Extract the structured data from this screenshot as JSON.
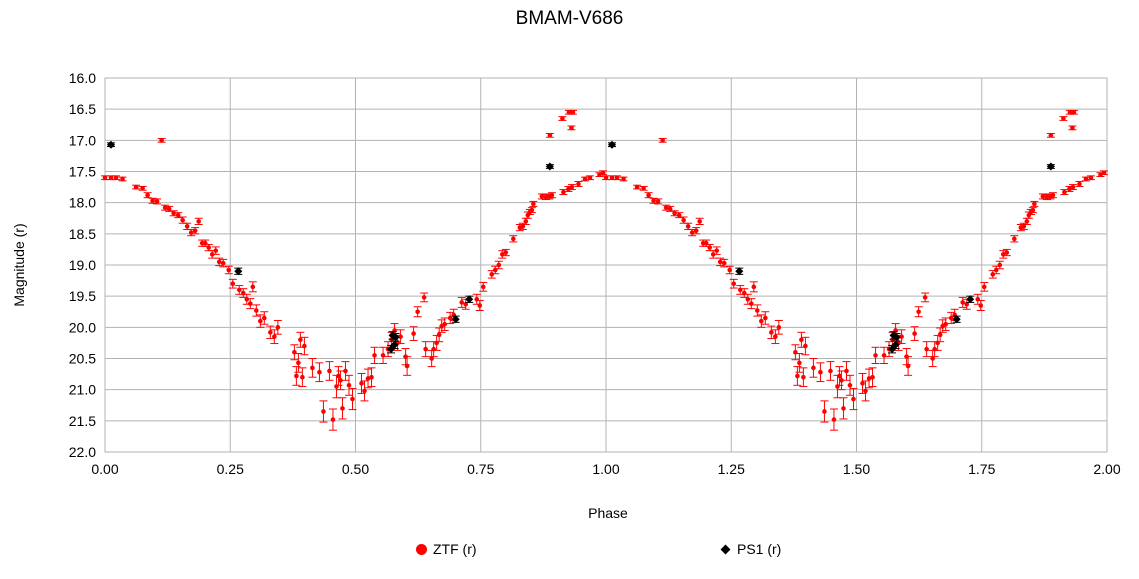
{
  "chart_data": {
    "type": "scatter",
    "title": "BMAM-V686",
    "xlabel": "Phase",
    "ylabel": "Magnitude (r)",
    "xlim": [
      0.0,
      2.0
    ],
    "ylim": [
      22.0,
      16.0
    ],
    "y_inverted": true,
    "grid": true,
    "legend_position": "bottom",
    "x_ticks": [
      "0.00",
      "0.25",
      "0.50",
      "0.75",
      "1.00",
      "1.25",
      "1.50",
      "1.75",
      "2.00"
    ],
    "y_ticks": [
      "16.0",
      "16.5",
      "17.0",
      "17.5",
      "18.0",
      "18.5",
      "19.0",
      "19.5",
      "20.0",
      "20.5",
      "21.0",
      "21.5",
      "22.0"
    ],
    "series": [
      {
        "name": "ZTF (r)",
        "marker": "circle",
        "color": "#ff0000",
        "phase_period": 1.0,
        "points": [
          [
            0.0,
            17.6,
            0.03
          ],
          [
            0.012,
            17.6,
            0.03
          ],
          [
            0.022,
            17.6,
            0.03
          ],
          [
            0.035,
            17.62,
            0.03
          ],
          [
            0.062,
            17.75,
            0.03
          ],
          [
            0.075,
            17.77,
            0.03
          ],
          [
            0.085,
            17.88,
            0.04
          ],
          [
            0.095,
            17.97,
            0.04
          ],
          [
            0.104,
            17.98,
            0.04
          ],
          [
            0.113,
            17.0,
            0.03
          ],
          [
            0.12,
            18.08,
            0.04
          ],
          [
            0.128,
            18.1,
            0.04
          ],
          [
            0.137,
            18.17,
            0.04
          ],
          [
            0.146,
            18.2,
            0.04
          ],
          [
            0.155,
            18.28,
            0.05
          ],
          [
            0.164,
            18.38,
            0.05
          ],
          [
            0.172,
            18.48,
            0.05
          ],
          [
            0.18,
            18.45,
            0.05
          ],
          [
            0.187,
            18.3,
            0.05
          ],
          [
            0.194,
            18.65,
            0.05
          ],
          [
            0.2,
            18.65,
            0.05
          ],
          [
            0.207,
            18.72,
            0.05
          ],
          [
            0.214,
            18.83,
            0.06
          ],
          [
            0.221,
            18.77,
            0.06
          ],
          [
            0.228,
            18.95,
            0.06
          ],
          [
            0.236,
            18.97,
            0.06
          ],
          [
            0.247,
            19.08,
            0.06
          ],
          [
            0.255,
            19.3,
            0.07
          ],
          [
            0.268,
            19.4,
            0.07
          ],
          [
            0.276,
            19.45,
            0.07
          ],
          [
            0.283,
            19.55,
            0.08
          ],
          [
            0.29,
            19.62,
            0.08
          ],
          [
            0.295,
            19.35,
            0.08
          ],
          [
            0.302,
            19.73,
            0.09
          ],
          [
            0.31,
            19.9,
            0.1
          ],
          [
            0.318,
            19.85,
            0.1
          ],
          [
            0.33,
            20.08,
            0.1
          ],
          [
            0.338,
            20.15,
            0.11
          ],
          [
            0.345,
            20.0,
            0.11
          ],
          [
            0.378,
            20.4,
            0.12
          ],
          [
            0.382,
            20.78,
            0.15
          ],
          [
            0.386,
            20.57,
            0.15
          ],
          [
            0.39,
            20.2,
            0.12
          ],
          [
            0.394,
            20.8,
            0.15
          ],
          [
            0.398,
            20.3,
            0.14
          ],
          [
            0.414,
            20.65,
            0.15
          ],
          [
            0.428,
            20.72,
            0.15
          ],
          [
            0.436,
            21.35,
            0.17
          ],
          [
            0.448,
            20.7,
            0.15
          ],
          [
            0.455,
            21.48,
            0.17
          ],
          [
            0.462,
            20.95,
            0.18
          ],
          [
            0.466,
            20.78,
            0.15
          ],
          [
            0.47,
            20.85,
            0.15
          ],
          [
            0.474,
            21.3,
            0.17
          ],
          [
            0.48,
            20.7,
            0.15
          ],
          [
            0.487,
            20.93,
            0.16
          ],
          [
            0.494,
            21.15,
            0.17
          ],
          [
            0.512,
            20.9,
            0.16
          ],
          [
            0.518,
            21.02,
            0.16
          ],
          [
            0.525,
            20.82,
            0.15
          ],
          [
            0.532,
            20.8,
            0.15
          ],
          [
            0.538,
            20.45,
            0.13
          ],
          [
            0.555,
            20.45,
            0.13
          ],
          [
            0.565,
            20.35,
            0.12
          ],
          [
            0.572,
            20.2,
            0.12
          ],
          [
            0.578,
            20.05,
            0.11
          ],
          [
            0.584,
            20.25,
            0.12
          ],
          [
            0.59,
            20.15,
            0.11
          ],
          [
            0.6,
            20.47,
            0.13
          ],
          [
            0.603,
            20.62,
            0.15
          ],
          [
            0.616,
            20.1,
            0.11
          ],
          [
            0.624,
            19.75,
            0.08
          ],
          [
            0.637,
            19.52,
            0.07
          ],
          [
            0.64,
            20.35,
            0.12
          ],
          [
            0.652,
            20.5,
            0.13
          ],
          [
            0.656,
            20.35,
            0.12
          ],
          [
            0.662,
            20.25,
            0.12
          ],
          [
            0.667,
            20.12,
            0.11
          ],
          [
            0.672,
            19.98,
            0.1
          ],
          [
            0.678,
            19.95,
            0.1
          ],
          [
            0.689,
            19.85,
            0.09
          ],
          [
            0.696,
            19.8,
            0.09
          ],
          [
            0.712,
            19.6,
            0.08
          ],
          [
            0.72,
            19.63,
            0.08
          ],
          [
            0.742,
            19.55,
            0.08
          ],
          [
            0.748,
            19.65,
            0.08
          ],
          [
            0.755,
            19.35,
            0.07
          ],
          [
            0.772,
            19.15,
            0.06
          ],
          [
            0.779,
            19.08,
            0.06
          ],
          [
            0.786,
            19.0,
            0.06
          ],
          [
            0.793,
            18.83,
            0.06
          ],
          [
            0.8,
            18.8,
            0.05
          ],
          [
            0.815,
            18.58,
            0.05
          ],
          [
            0.828,
            18.4,
            0.05
          ],
          [
            0.834,
            18.38,
            0.05
          ],
          [
            0.84,
            18.3,
            0.05
          ],
          [
            0.844,
            18.2,
            0.05
          ],
          [
            0.848,
            18.15,
            0.04
          ],
          [
            0.852,
            18.12,
            0.04
          ],
          [
            0.855,
            18.02,
            0.04
          ],
          [
            0.872,
            17.9,
            0.04
          ],
          [
            0.88,
            17.91,
            0.04
          ],
          [
            0.887,
            17.9,
            0.04
          ],
          [
            0.892,
            17.88,
            0.04
          ],
          [
            0.888,
            16.92,
            0.03
          ],
          [
            0.913,
            16.65,
            0.03
          ],
          [
            0.926,
            16.55,
            0.03
          ],
          [
            0.934,
            16.55,
            0.03
          ],
          [
            0.931,
            16.8,
            0.03
          ],
          [
            0.915,
            17.83,
            0.04
          ],
          [
            0.925,
            17.78,
            0.04
          ],
          [
            0.932,
            17.75,
            0.04
          ],
          [
            0.945,
            17.7,
            0.04
          ],
          [
            0.958,
            17.62,
            0.03
          ],
          [
            0.968,
            17.6,
            0.03
          ],
          [
            0.987,
            17.55,
            0.03
          ],
          [
            0.994,
            17.52,
            0.03
          ]
        ]
      },
      {
        "name": "PS1 (r)",
        "marker": "diamond",
        "color": "#000000",
        "phase_period": 1.0,
        "points": [
          [
            0.012,
            17.07,
            0.03
          ],
          [
            0.266,
            19.1,
            0.05
          ],
          [
            0.571,
            20.35,
            0.06
          ],
          [
            0.574,
            20.13,
            0.06
          ],
          [
            0.578,
            20.28,
            0.06
          ],
          [
            0.58,
            20.16,
            0.06
          ],
          [
            0.7,
            19.87,
            0.05
          ],
          [
            0.727,
            19.55,
            0.05
          ],
          [
            0.888,
            17.42,
            0.03
          ]
        ]
      }
    ]
  }
}
